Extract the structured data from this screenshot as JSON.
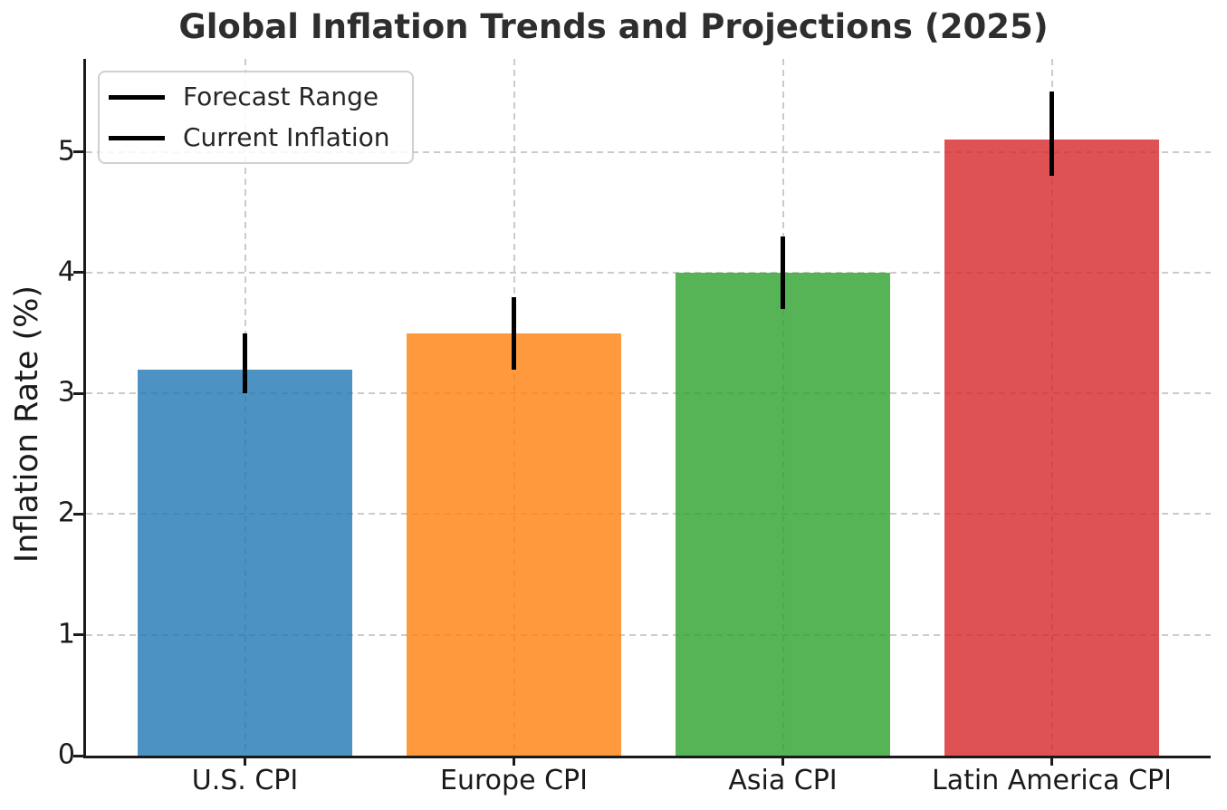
{
  "chart_data": {
    "type": "bar",
    "title": "Global Inflation Trends and Projections (2025)",
    "xlabel": "",
    "ylabel": "Inflation Rate (%)",
    "categories": [
      "U.S. CPI",
      "Europe CPI",
      "Asia CPI",
      "Latin America CPI"
    ],
    "series": [
      {
        "name": "Current Inflation",
        "values": [
          3.2,
          3.5,
          4.0,
          5.1
        ]
      }
    ],
    "error_bars": {
      "name": "Forecast Range",
      "low": [
        3.0,
        3.2,
        3.7,
        4.8
      ],
      "high": [
        3.5,
        3.8,
        4.3,
        5.5
      ]
    },
    "legend": {
      "position": "upper left",
      "entries": [
        "Forecast Range",
        "Current Inflation"
      ],
      "marker_color": "#000000"
    },
    "yticks": [
      0,
      1,
      2,
      3,
      4,
      5
    ],
    "ylim": [
      0,
      5.77
    ],
    "grid": {
      "show": true,
      "style": "dashed",
      "color": "#cbcbcb"
    },
    "bar_colors": [
      "#1f77b4",
      "#ff7f0e",
      "#2ca02c",
      "#d62728"
    ],
    "bar_alpha": 0.8,
    "error_color": "#000000"
  }
}
